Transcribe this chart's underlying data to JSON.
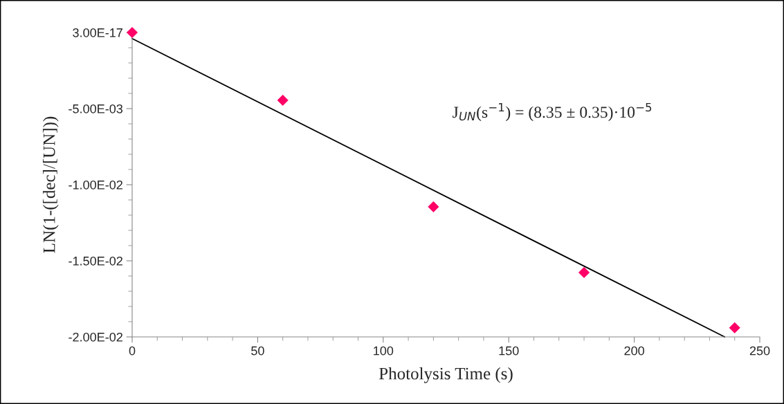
{
  "chart_data": {
    "type": "scatter",
    "xlabel": "Photolysis Time (s)",
    "ylabel": "LN(1-([dec]/[UN]))",
    "x": [
      0,
      60,
      120,
      180,
      240
    ],
    "series": [
      {
        "color": "#ff0066",
        "marker": "diamond",
        "values": [
          0,
          -0.00445,
          -0.01145,
          -0.01577,
          -0.0194
        ]
      },
      {
        "type": "line",
        "color": "#000000",
        "x": [
          0,
          236
        ],
        "values": [
          -0.0004,
          -0.02
        ],
        "line_style": "solid"
      }
    ],
    "xlim": [
      0,
      250
    ],
    "xticks": [
      0,
      50,
      100,
      150,
      200,
      250
    ],
    "ylim": [
      -0.02,
      0
    ],
    "yticks": [
      {
        "value": 0,
        "label": "3.00E-17"
      },
      {
        "value": -0.005,
        "label": "-5.00E-03"
      },
      {
        "value": -0.01,
        "label": "-1.00E-02"
      },
      {
        "value": -0.015,
        "label": "-1.50E-02"
      },
      {
        "value": -0.02,
        "label": "-2.00E-02"
      }
    ],
    "annotations": [
      "J$_{UN}$(s$^{−1}$) = (8.35 ± 0.35)·10$^{−5}$"
    ],
    "grid": false,
    "legend": false
  }
}
